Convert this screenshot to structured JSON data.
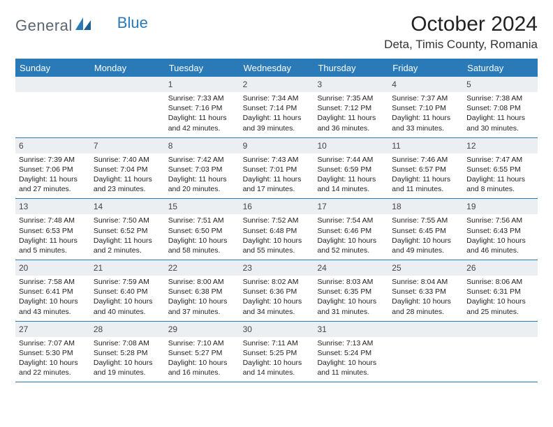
{
  "brand": {
    "text1": "General",
    "text2": "Blue"
  },
  "title": "October 2024",
  "location": "Deta, Timis County, Romania",
  "colors": {
    "accent": "#2a7ab8",
    "header_bg": "#2a7ab8",
    "daynum_bg": "#eceff1"
  },
  "dayHeaders": [
    "Sunday",
    "Monday",
    "Tuesday",
    "Wednesday",
    "Thursday",
    "Friday",
    "Saturday"
  ],
  "weeks": [
    [
      {
        "empty": true
      },
      {
        "empty": true
      },
      {
        "day": "1",
        "sunrise": "7:33 AM",
        "sunset": "7:16 PM",
        "daylight_h": 11,
        "daylight_m": 42
      },
      {
        "day": "2",
        "sunrise": "7:34 AM",
        "sunset": "7:14 PM",
        "daylight_h": 11,
        "daylight_m": 39
      },
      {
        "day": "3",
        "sunrise": "7:35 AM",
        "sunset": "7:12 PM",
        "daylight_h": 11,
        "daylight_m": 36
      },
      {
        "day": "4",
        "sunrise": "7:37 AM",
        "sunset": "7:10 PM",
        "daylight_h": 11,
        "daylight_m": 33
      },
      {
        "day": "5",
        "sunrise": "7:38 AM",
        "sunset": "7:08 PM",
        "daylight_h": 11,
        "daylight_m": 30
      }
    ],
    [
      {
        "day": "6",
        "sunrise": "7:39 AM",
        "sunset": "7:06 PM",
        "daylight_h": 11,
        "daylight_m": 27
      },
      {
        "day": "7",
        "sunrise": "7:40 AM",
        "sunset": "7:04 PM",
        "daylight_h": 11,
        "daylight_m": 23
      },
      {
        "day": "8",
        "sunrise": "7:42 AM",
        "sunset": "7:03 PM",
        "daylight_h": 11,
        "daylight_m": 20
      },
      {
        "day": "9",
        "sunrise": "7:43 AM",
        "sunset": "7:01 PM",
        "daylight_h": 11,
        "daylight_m": 17
      },
      {
        "day": "10",
        "sunrise": "7:44 AM",
        "sunset": "6:59 PM",
        "daylight_h": 11,
        "daylight_m": 14
      },
      {
        "day": "11",
        "sunrise": "7:46 AM",
        "sunset": "6:57 PM",
        "daylight_h": 11,
        "daylight_m": 11
      },
      {
        "day": "12",
        "sunrise": "7:47 AM",
        "sunset": "6:55 PM",
        "daylight_h": 11,
        "daylight_m": 8
      }
    ],
    [
      {
        "day": "13",
        "sunrise": "7:48 AM",
        "sunset": "6:53 PM",
        "daylight_h": 11,
        "daylight_m": 5
      },
      {
        "day": "14",
        "sunrise": "7:50 AM",
        "sunset": "6:52 PM",
        "daylight_h": 11,
        "daylight_m": 2
      },
      {
        "day": "15",
        "sunrise": "7:51 AM",
        "sunset": "6:50 PM",
        "daylight_h": 10,
        "daylight_m": 58
      },
      {
        "day": "16",
        "sunrise": "7:52 AM",
        "sunset": "6:48 PM",
        "daylight_h": 10,
        "daylight_m": 55
      },
      {
        "day": "17",
        "sunrise": "7:54 AM",
        "sunset": "6:46 PM",
        "daylight_h": 10,
        "daylight_m": 52
      },
      {
        "day": "18",
        "sunrise": "7:55 AM",
        "sunset": "6:45 PM",
        "daylight_h": 10,
        "daylight_m": 49
      },
      {
        "day": "19",
        "sunrise": "7:56 AM",
        "sunset": "6:43 PM",
        "daylight_h": 10,
        "daylight_m": 46
      }
    ],
    [
      {
        "day": "20",
        "sunrise": "7:58 AM",
        "sunset": "6:41 PM",
        "daylight_h": 10,
        "daylight_m": 43
      },
      {
        "day": "21",
        "sunrise": "7:59 AM",
        "sunset": "6:40 PM",
        "daylight_h": 10,
        "daylight_m": 40
      },
      {
        "day": "22",
        "sunrise": "8:00 AM",
        "sunset": "6:38 PM",
        "daylight_h": 10,
        "daylight_m": 37
      },
      {
        "day": "23",
        "sunrise": "8:02 AM",
        "sunset": "6:36 PM",
        "daylight_h": 10,
        "daylight_m": 34
      },
      {
        "day": "24",
        "sunrise": "8:03 AM",
        "sunset": "6:35 PM",
        "daylight_h": 10,
        "daylight_m": 31
      },
      {
        "day": "25",
        "sunrise": "8:04 AM",
        "sunset": "6:33 PM",
        "daylight_h": 10,
        "daylight_m": 28
      },
      {
        "day": "26",
        "sunrise": "8:06 AM",
        "sunset": "6:31 PM",
        "daylight_h": 10,
        "daylight_m": 25
      }
    ],
    [
      {
        "day": "27",
        "sunrise": "7:07 AM",
        "sunset": "5:30 PM",
        "daylight_h": 10,
        "daylight_m": 22
      },
      {
        "day": "28",
        "sunrise": "7:08 AM",
        "sunset": "5:28 PM",
        "daylight_h": 10,
        "daylight_m": 19
      },
      {
        "day": "29",
        "sunrise": "7:10 AM",
        "sunset": "5:27 PM",
        "daylight_h": 10,
        "daylight_m": 16
      },
      {
        "day": "30",
        "sunrise": "7:11 AM",
        "sunset": "5:25 PM",
        "daylight_h": 10,
        "daylight_m": 14
      },
      {
        "day": "31",
        "sunrise": "7:13 AM",
        "sunset": "5:24 PM",
        "daylight_h": 10,
        "daylight_m": 11
      },
      {
        "empty": true
      },
      {
        "empty": true
      }
    ]
  ],
  "labels": {
    "sunrise": "Sunrise:",
    "sunset": "Sunset:",
    "daylight": "Daylight:",
    "hours": "hours",
    "and": "and",
    "minutes": "minutes."
  }
}
